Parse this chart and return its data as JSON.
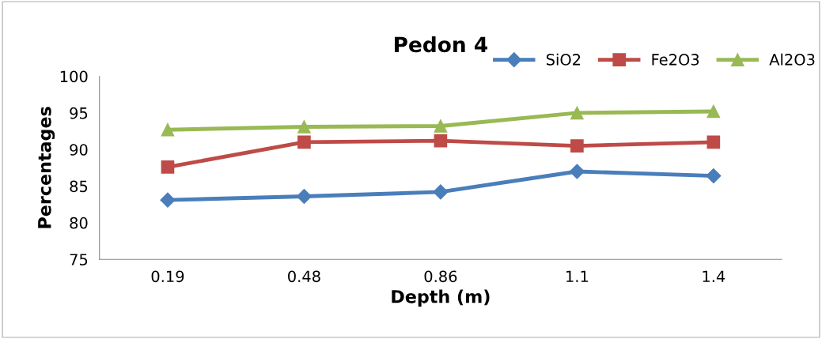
{
  "chart_data": {
    "type": "line",
    "title": "Pedon 4",
    "xlabel": "Depth (m)",
    "ylabel": "Percentages",
    "categories": [
      "0.19",
      "0.48",
      "0.86",
      "1.1",
      "1.4"
    ],
    "series": [
      {
        "name": "SiO2",
        "color": "#4a7ebb",
        "marker": "diamond",
        "values": [
          83.1,
          83.6,
          84.2,
          87.0,
          86.4
        ]
      },
      {
        "name": "Fe2O3",
        "color": "#be4b48",
        "marker": "square",
        "values": [
          87.6,
          91.0,
          91.2,
          90.5,
          91.0
        ]
      },
      {
        "name": "Al2O3",
        "color": "#98b954",
        "marker": "triangle",
        "values": [
          92.7,
          93.1,
          93.2,
          95.0,
          95.2
        ]
      }
    ],
    "ylim": [
      75,
      100
    ],
    "yticks": [
      75,
      80,
      85,
      90,
      95,
      100
    ],
    "grid": false,
    "legend": "top right",
    "line_style": "solid"
  }
}
